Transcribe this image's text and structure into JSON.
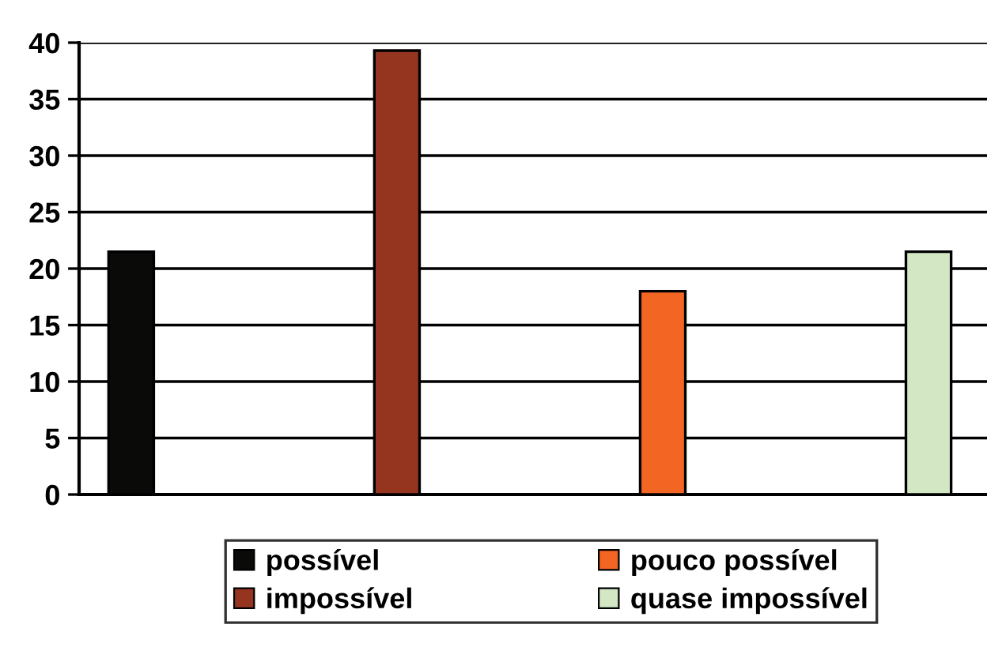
{
  "chart_data": {
    "type": "bar",
    "categories": [
      null,
      null,
      null,
      null
    ],
    "series": [
      {
        "name": "possível",
        "color": "#0a0a08",
        "values": [
          21.5,
          null,
          null,
          null
        ]
      },
      {
        "name": "impossível",
        "color": "#953520",
        "values": [
          null,
          39.3,
          null,
          null
        ]
      },
      {
        "name": "pouco possível",
        "color": "#f26522",
        "values": [
          null,
          null,
          18,
          null
        ]
      },
      {
        "name": "quase impossível",
        "color": "#d3e7c5",
        "values": [
          null,
          null,
          null,
          21.5
        ]
      }
    ],
    "ylim": [
      0,
      40
    ],
    "yticks": [
      0,
      5,
      10,
      15,
      20,
      25,
      30,
      35,
      40
    ],
    "grid": "y",
    "legend": "bottom",
    "tick_labels": "y"
  }
}
